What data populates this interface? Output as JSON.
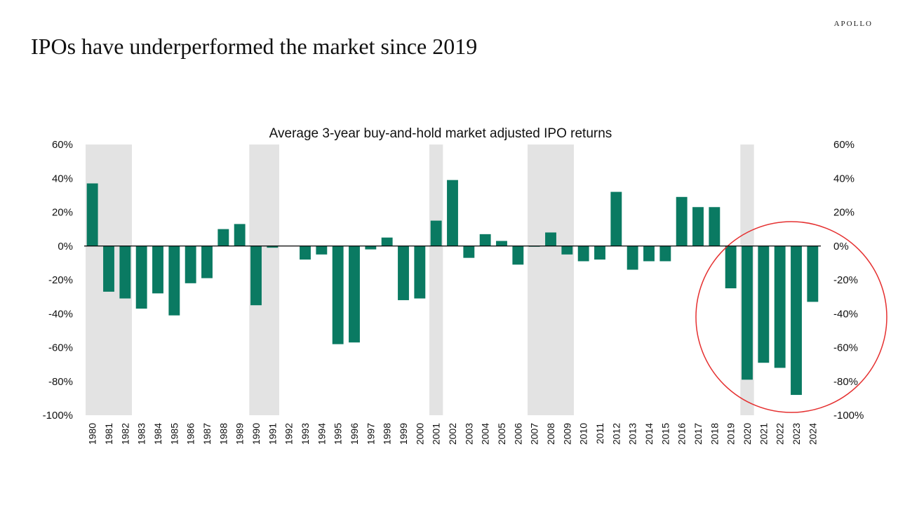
{
  "header": {
    "brand": "APOLLO",
    "headline": "IPOs have underperformed the market since 2019"
  },
  "colors": {
    "bar": "#0a7a62",
    "shade": "#e3e3e3",
    "highlight_circle": "#e53030",
    "axis": "#000000"
  },
  "chart_data": {
    "type": "bar",
    "title": "Average 3-year buy-and-hold market adjusted IPO returns",
    "xlabel": "",
    "ylabel": "",
    "ylim": [
      -100,
      60
    ],
    "yticks": [
      60,
      40,
      20,
      0,
      -20,
      -40,
      -60,
      -80,
      -100
    ],
    "ytick_labels": [
      "60%",
      "40%",
      "20%",
      "0%",
      "-20%",
      "-40%",
      "-60%",
      "-80%",
      "-100%"
    ],
    "secondary_y_axis": true,
    "grid": false,
    "legend": "none",
    "categories": [
      "1980",
      "1981",
      "1982",
      "1983",
      "1984",
      "1985",
      "1986",
      "1987",
      "1988",
      "1989",
      "1990",
      "1991",
      "1992",
      "1993",
      "1994",
      "1995",
      "1996",
      "1997",
      "1998",
      "1999",
      "2000",
      "2001",
      "2002",
      "2003",
      "2004",
      "2005",
      "2006",
      "2007",
      "2008",
      "2009",
      "2010",
      "2011",
      "2012",
      "2013",
      "2014",
      "2015",
      "2016",
      "2017",
      "2018",
      "2019",
      "2020",
      "2021",
      "2022",
      "2023",
      "2024"
    ],
    "values": [
      37,
      -27,
      -31,
      -37,
      -28,
      -41,
      -22,
      -19,
      10,
      13,
      -35,
      -1,
      0,
      -8,
      -5,
      -58,
      -57,
      -2,
      5,
      -32,
      -31,
      15,
      39,
      -7,
      7,
      3,
      -11,
      -0.3,
      8,
      -5,
      -9,
      -8,
      32,
      -14,
      -9,
      -9,
      29,
      23,
      23,
      -25,
      -79,
      -69,
      -72,
      -88,
      -33
    ],
    "shaded_periods": [
      [
        "1980",
        "1982"
      ],
      [
        "1990",
        "1991"
      ],
      [
        "2001",
        "2001"
      ],
      [
        "2007",
        "2009"
      ],
      [
        "2020",
        "2020"
      ]
    ],
    "highlight": {
      "shape": "circle",
      "years": [
        "2019",
        "2024"
      ]
    }
  }
}
